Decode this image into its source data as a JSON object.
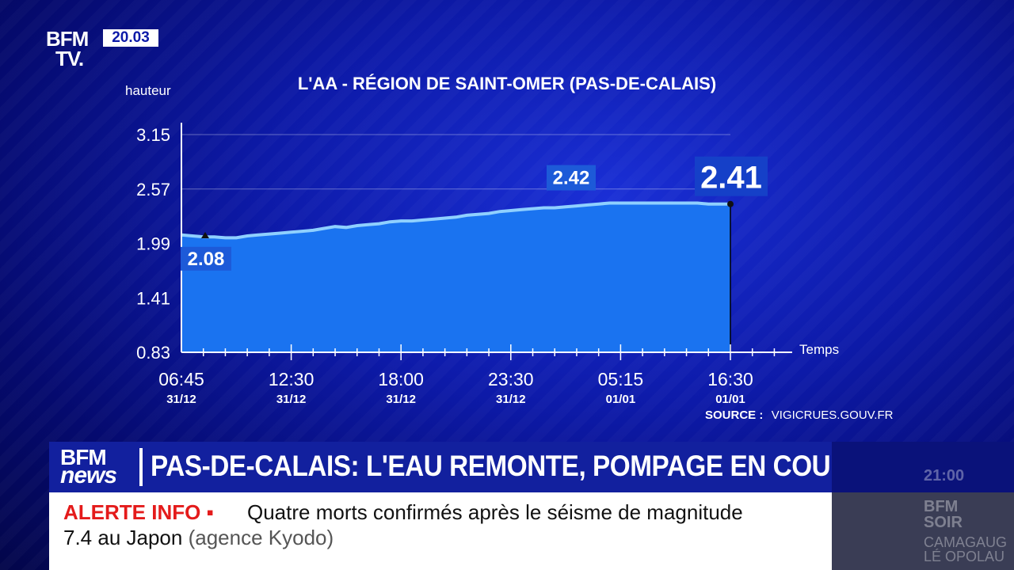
{
  "brand": {
    "line1": "BFM",
    "line2": "TV.",
    "clock": "20.03"
  },
  "chart_data": {
    "type": "area",
    "title": "L'AA - RÉGION DE SAINT-OMER (PAS-DE-CALAIS)",
    "ylabel": "hauteur",
    "xlabel": "Temps",
    "yticks": [
      3.15,
      2.57,
      1.99,
      1.41,
      0.83
    ],
    "ylim": [
      0.83,
      3.15
    ],
    "xticks": [
      {
        "time": "06:45",
        "date": "31/12"
      },
      {
        "time": "12:30",
        "date": "31/12"
      },
      {
        "time": "18:00",
        "date": "31/12"
      },
      {
        "time": "23:30",
        "date": "31/12"
      },
      {
        "time": "05:15",
        "date": "01/01"
      },
      {
        "time": "16:30",
        "date": "01/01"
      }
    ],
    "grid": true,
    "series": [
      {
        "values": [
          2.08,
          2.07,
          2.06,
          2.06,
          2.05,
          2.05,
          2.07,
          2.08,
          2.09,
          2.1,
          2.11,
          2.12,
          2.13,
          2.15,
          2.17,
          2.16,
          2.18,
          2.19,
          2.2,
          2.22,
          2.23,
          2.23,
          2.24,
          2.25,
          2.26,
          2.27,
          2.29,
          2.3,
          2.31,
          2.33,
          2.34,
          2.35,
          2.36,
          2.37,
          2.37,
          2.38,
          2.39,
          2.4,
          2.41,
          2.42,
          2.42,
          2.42,
          2.42,
          2.42,
          2.42,
          2.42,
          2.42,
          2.42,
          2.41,
          2.41,
          2.41
        ]
      }
    ],
    "annotations": [
      {
        "label": "2.08",
        "value": 2.08
      },
      {
        "label": "2.42",
        "value": 2.42
      },
      {
        "label": "2.41",
        "value": 2.41
      }
    ],
    "source_label": "SOURCE :",
    "source": "VIGICRUES.GOUV.FR",
    "colors": {
      "fill": "#1a73f0",
      "line": "#8fd0ff",
      "label_bg": "#1d5ad8",
      "label_big_bg": "#1540c8"
    }
  },
  "ticker": {
    "logo_line1": "BFM",
    "logo_line2": "news",
    "headline": "PAS-DE-CALAIS: L'EAU REMONTE, POMPAGE EN COURS",
    "side_time": "21:00"
  },
  "alert": {
    "label": "ALERTE INFO ▪",
    "line1": "Quatre morts confirmés après le séisme de magnitude",
    "line2_main": "7.4 au Japon",
    "line2_soft": "(agence Kyodo)"
  },
  "side_panel": {
    "logo_line1": "BFM",
    "logo_line2": "SOIR",
    "text_line1": "CAMAGAUG",
    "text_line2": "LÉ OPOLAU"
  }
}
